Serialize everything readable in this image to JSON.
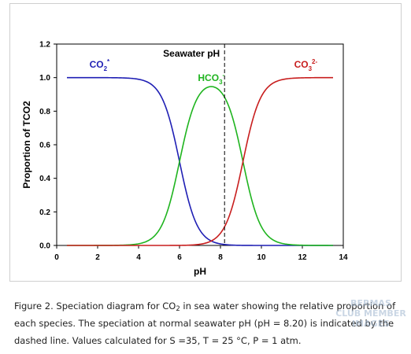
{
  "chart_data": {
    "type": "line",
    "xlabel": "pH",
    "ylabel": "Proportion of TCO2",
    "xlim": [
      0,
      14
    ],
    "ylim": [
      0.0,
      1.2
    ],
    "xticks": [
      "0",
      "2",
      "4",
      "6",
      "8",
      "10",
      "12",
      "14"
    ],
    "yticks": [
      "0.0",
      "0.2",
      "0.4",
      "0.6",
      "0.8",
      "1.0",
      "1.2"
    ],
    "grid": false,
    "x_range": [
      0.5,
      13.5
    ],
    "pK1": 6.0,
    "pK2": 9.1,
    "series": [
      {
        "name": "CO2*",
        "label_main": "CO",
        "label_sub": "2",
        "label_sup": "*",
        "color": "#1f1fb4"
      },
      {
        "name": "HCO3-",
        "label_main": "HCO",
        "label_sub": "3",
        "label_sup": "-",
        "color": "#1fb41f"
      },
      {
        "name": "CO32-",
        "label_main": "CO",
        "label_sub": "3",
        "label_sup": "2-",
        "color": "#c81e1e"
      }
    ],
    "reference_line": {
      "x": 8.2,
      "label": "Seawater pH",
      "style": "dashed"
    }
  },
  "caption": {
    "part1": "Figure 2. Speciation diagram for CO",
    "sub": "2",
    "part2": " in sea water showing the relative proportion of each species. The speciation at normal seawater pH (pH = 8.20) is indicated by the dashed line. Values calculated for S =35, T = 25 °C, P = 1 atm."
  },
  "watermark": {
    "line1": "BERMAS",
    "line2": "CLUB MEMBER",
    "line3": "IMAGES"
  }
}
